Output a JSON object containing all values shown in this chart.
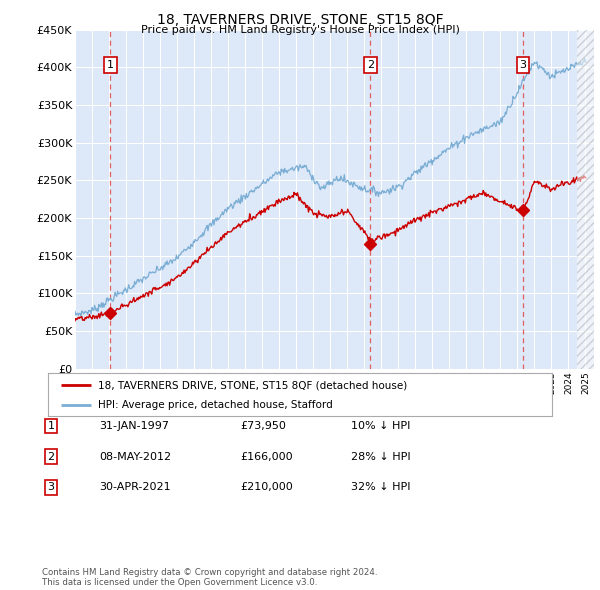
{
  "title": "18, TAVERNERS DRIVE, STONE, ST15 8QF",
  "subtitle": "Price paid vs. HM Land Registry's House Price Index (HPI)",
  "ylim": [
    0,
    450000
  ],
  "yticks": [
    0,
    50000,
    100000,
    150000,
    200000,
    250000,
    300000,
    350000,
    400000,
    450000
  ],
  "ytick_labels": [
    "£0",
    "£50K",
    "£100K",
    "£150K",
    "£200K",
    "£250K",
    "£300K",
    "£350K",
    "£400K",
    "£450K"
  ],
  "sale_dates": [
    1997.08,
    2012.36,
    2021.33
  ],
  "sale_prices": [
    73950,
    166000,
    210000
  ],
  "sale_labels": [
    "1",
    "2",
    "3"
  ],
  "legend_red": "18, TAVERNERS DRIVE, STONE, ST15 8QF (detached house)",
  "legend_blue": "HPI: Average price, detached house, Stafford",
  "table_rows": [
    [
      "1",
      "31-JAN-1997",
      "£73,950",
      "10% ↓ HPI"
    ],
    [
      "2",
      "08-MAY-2012",
      "£166,000",
      "28% ↓ HPI"
    ],
    [
      "3",
      "30-APR-2021",
      "£210,000",
      "32% ↓ HPI"
    ]
  ],
  "footnote1": "Contains HM Land Registry data © Crown copyright and database right 2024.",
  "footnote2": "This data is licensed under the Open Government Licence v3.0.",
  "plot_bg_color": "#dde8f8",
  "red_line_color": "#cc0000",
  "blue_line_color": "#7aadd4",
  "grid_color": "#ffffff",
  "dashed_line_color": "#e06060"
}
